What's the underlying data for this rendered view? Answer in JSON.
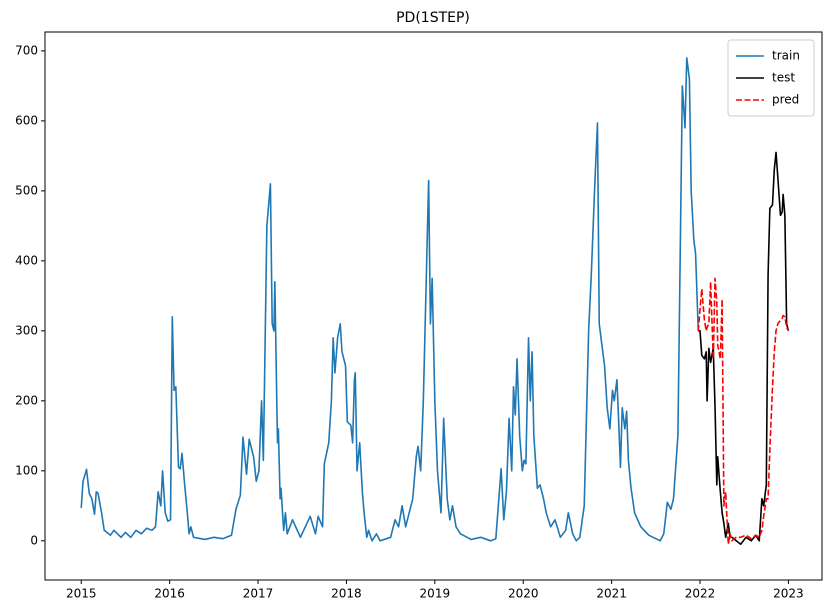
{
  "chart_data": {
    "type": "line",
    "title": "PD(1STEP)",
    "xlim": [
      2014.59,
      2023.38
    ],
    "xticks": [
      2015,
      2016,
      2017,
      2018,
      2019,
      2020,
      2021,
      2022,
      2023
    ],
    "ylim": [
      -56,
      727
    ],
    "yticks": [
      0,
      100,
      200,
      300,
      400,
      500,
      600,
      700
    ],
    "legend": "upper right",
    "grid": false,
    "series": [
      {
        "name": "train",
        "color": "#1f77b4",
        "linestyle": "solid",
        "x": [
          2015.0,
          2015.02,
          2015.06,
          2015.09,
          2015.12,
          2015.15,
          2015.17,
          2015.19,
          2015.23,
          2015.26,
          2015.33,
          2015.37,
          2015.45,
          2015.5,
          2015.56,
          2015.62,
          2015.68,
          2015.74,
          2015.8,
          2015.84,
          2015.87,
          2015.9,
          2015.92,
          2015.95,
          2015.98,
          2016.01,
          2016.03,
          2016.05,
          2016.07,
          2016.1,
          2016.12,
          2016.14,
          2016.17,
          2016.2,
          2016.22,
          2016.24,
          2016.27,
          2016.4,
          2016.5,
          2016.6,
          2016.7,
          2016.75,
          2016.8,
          2016.83,
          2016.87,
          2016.9,
          2016.95,
          2016.98,
          2017.01,
          2017.04,
          2017.06,
          2017.1,
          2017.14,
          2017.16,
          2017.18,
          2017.19,
          2017.22,
          2017.23,
          2017.25,
          2017.26,
          2017.29,
          2017.31,
          2017.33,
          2017.39,
          2017.48,
          2017.59,
          2017.65,
          2017.68,
          2017.73,
          2017.75,
          2017.8,
          2017.83,
          2017.85,
          2017.87,
          2017.9,
          2017.93,
          2017.95,
          2017.99,
          2018.01,
          2018.05,
          2018.07,
          2018.09,
          2018.1,
          2018.12,
          2018.15,
          2018.18,
          2018.2,
          2018.23,
          2018.25,
          2018.29,
          2018.34,
          2018.38,
          2018.5,
          2018.55,
          2018.59,
          2018.63,
          2018.67,
          2018.7,
          2018.75,
          2018.79,
          2018.81,
          2018.84,
          2018.87,
          2018.93,
          2018.95,
          2018.97,
          2019.0,
          2019.03,
          2019.07,
          2019.1,
          2019.14,
          2019.17,
          2019.2,
          2019.24,
          2019.29,
          2019.41,
          2019.52,
          2019.63,
          2019.69,
          2019.75,
          2019.78,
          2019.81,
          2019.84,
          2019.87,
          2019.89,
          2019.91,
          2019.93,
          2019.96,
          2019.99,
          2020.01,
          2020.03,
          2020.06,
          2020.08,
          2020.1,
          2020.12,
          2020.16,
          2020.19,
          2020.23,
          2020.26,
          2020.31,
          2020.36,
          2020.42,
          2020.48,
          2020.51,
          2020.56,
          2020.6,
          2020.64,
          2020.69,
          2020.74,
          2020.77,
          2020.81,
          2020.84,
          2020.86,
          2020.89,
          2020.92,
          2020.95,
          2020.98,
          2021.01,
          2021.03,
          2021.06,
          2021.08,
          2021.1,
          2021.12,
          2021.15,
          2021.17,
          2021.19,
          2021.22,
          2021.26,
          2021.33,
          2021.42,
          2021.5,
          2021.55,
          2021.59,
          2021.63,
          2021.67,
          2021.7,
          2021.75,
          2021.8,
          2021.83,
          2021.85,
          2021.88,
          2021.9,
          2021.93,
          2021.95,
          2021.98
        ],
        "values": [
          47,
          85,
          102,
          68,
          60,
          38,
          70,
          68,
          40,
          15,
          8,
          15,
          5,
          12,
          5,
          15,
          10,
          18,
          15,
          20,
          70,
          50,
          100,
          40,
          28,
          30,
          320,
          215,
          220,
          105,
          103,
          125,
          80,
          40,
          10,
          20,
          5,
          2,
          5,
          3,
          8,
          45,
          65,
          148,
          95,
          145,
          120,
          85,
          100,
          200,
          115,
          450,
          510,
          310,
          300,
          370,
          140,
          160,
          60,
          75,
          15,
          40,
          10,
          30,
          5,
          35,
          10,
          35,
          20,
          110,
          140,
          200,
          290,
          240,
          290,
          310,
          270,
          250,
          170,
          165,
          140,
          230,
          240,
          100,
          140,
          70,
          40,
          5,
          15,
          0,
          10,
          0,
          5,
          30,
          20,
          50,
          20,
          35,
          60,
          120,
          135,
          100,
          200,
          515,
          310,
          375,
          200,
          100,
          40,
          175,
          60,
          30,
          50,
          20,
          10,
          2,
          5,
          0,
          3,
          103,
          30,
          70,
          175,
          100,
          220,
          180,
          260,
          150,
          100,
          115,
          110,
          290,
          200,
          270,
          150,
          75,
          80,
          60,
          40,
          20,
          30,
          5,
          15,
          40,
          10,
          0,
          5,
          50,
          300,
          380,
          510,
          597,
          310,
          280,
          250,
          190,
          160,
          215,
          200,
          230,
          170,
          105,
          190,
          160,
          185,
          115,
          75,
          40,
          20,
          8,
          3,
          0,
          10,
          55,
          45,
          60,
          150,
          650,
          590,
          690,
          660,
          500,
          430,
          410,
          300
        ]
      },
      {
        "name": "test",
        "color": "#000000",
        "linestyle": "solid",
        "x": [
          2021.98,
          2022.0,
          2022.02,
          2022.05,
          2022.07,
          2022.08,
          2022.1,
          2022.12,
          2022.15,
          2022.17,
          2022.19,
          2022.2,
          2022.23,
          2022.25,
          2022.27,
          2022.29,
          2022.32,
          2022.34,
          2022.36,
          2022.41,
          2022.46,
          2022.52,
          2022.58,
          2022.63,
          2022.67,
          2022.7,
          2022.72,
          2022.75,
          2022.77,
          2022.79,
          2022.82,
          2022.84,
          2022.86,
          2022.88,
          2022.91,
          2022.93,
          2022.94,
          2022.96,
          2022.98,
          2023.0
        ],
        "values": [
          300,
          300,
          265,
          260,
          270,
          200,
          275,
          255,
          275,
          190,
          80,
          120,
          70,
          40,
          25,
          5,
          25,
          5,
          5,
          0,
          -5,
          5,
          0,
          8,
          0,
          60,
          50,
          80,
          380,
          475,
          480,
          530,
          555,
          520,
          465,
          470,
          495,
          465,
          310,
          300
        ]
      },
      {
        "name": "pred",
        "color": "#ff0000",
        "linestyle": "dashed",
        "x": [
          2021.98,
          2022.0,
          2022.02,
          2022.05,
          2022.07,
          2022.08,
          2022.1,
          2022.12,
          2022.15,
          2022.17,
          2022.19,
          2022.2,
          2022.23,
          2022.25,
          2022.27,
          2022.29,
          2022.32,
          2022.34,
          2022.36,
          2022.41,
          2022.46,
          2022.52,
          2022.58,
          2022.63,
          2022.67,
          2022.7,
          2022.72,
          2022.75,
          2022.77,
          2022.79,
          2022.82,
          2022.84,
          2022.86,
          2022.88,
          2022.91,
          2022.93,
          2022.94,
          2022.96,
          2022.98,
          2023.0
        ],
        "values": [
          300,
          330,
          360,
          315,
          300,
          305,
          310,
          370,
          260,
          375,
          340,
          280,
          260,
          345,
          50,
          70,
          -5,
          10,
          0,
          5,
          5,
          8,
          3,
          8,
          5,
          15,
          35,
          60,
          60,
          130,
          220,
          270,
          300,
          310,
          315,
          318,
          322,
          320,
          305,
          300
        ]
      }
    ]
  }
}
